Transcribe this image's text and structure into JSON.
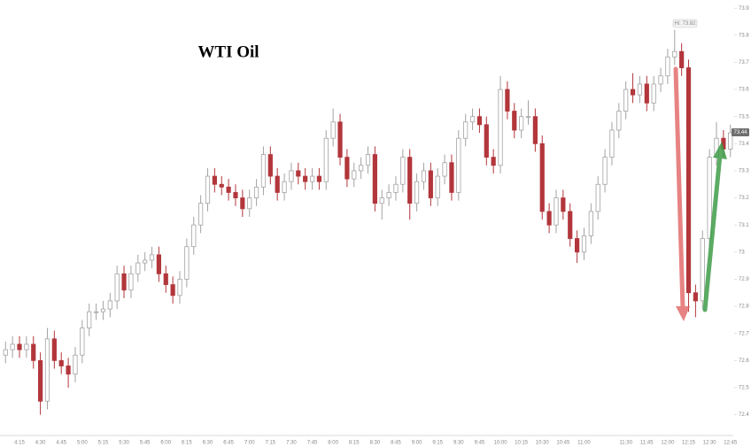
{
  "chart_data": {
    "type": "candlestick",
    "title": "WTI Oil",
    "categories": [
      null,
      null,
      "4:15",
      null,
      null,
      "4:30",
      null,
      null,
      "4:45",
      null,
      null,
      "5:00",
      null,
      null,
      "5:15",
      null,
      null,
      "5:30",
      null,
      null,
      "5:45",
      null,
      null,
      "6:00",
      null,
      null,
      "6:15",
      null,
      null,
      "6:30",
      null,
      null,
      "6:45",
      null,
      null,
      "7:00",
      null,
      null,
      "7:15",
      null,
      null,
      "7:30",
      null,
      null,
      "7:45",
      null,
      null,
      "8:00",
      null,
      null,
      "8:15",
      null,
      null,
      "8:30",
      null,
      null,
      "8:45",
      null,
      null,
      "9:00",
      null,
      null,
      "9:15",
      null,
      null,
      "9:30",
      null,
      null,
      "9:45",
      null,
      null,
      "10:00",
      null,
      null,
      "10:15",
      null,
      null,
      "10:30",
      null,
      null,
      "10:45",
      null,
      null,
      "11:00",
      null,
      null,
      null,
      null,
      null,
      "11:30",
      null,
      null,
      "11:45",
      null,
      null,
      "12:00",
      null,
      null,
      "12:15",
      null,
      null,
      "12:30",
      null,
      null,
      "12:45"
    ],
    "open": [
      72.62,
      72.64,
      72.66,
      72.64,
      72.66,
      72.6,
      72.45,
      72.68,
      72.6,
      72.58,
      72.55,
      72.62,
      72.72,
      72.78,
      72.78,
      72.79,
      72.82,
      72.92,
      72.86,
      72.92,
      72.96,
      72.97,
      72.99,
      72.92,
      72.88,
      72.84,
      72.9,
      73.02,
      73.1,
      73.18,
      73.28,
      73.25,
      73.24,
      73.22,
      73.2,
      73.16,
      73.2,
      73.24,
      73.36,
      73.28,
      73.22,
      73.26,
      73.3,
      73.28,
      73.26,
      73.28,
      73.26,
      73.42,
      73.48,
      73.35,
      73.27,
      73.3,
      73.32,
      73.36,
      73.18,
      73.2,
      73.22,
      73.25,
      73.35,
      73.18,
      73.26,
      73.3,
      73.2,
      73.28,
      73.33,
      73.22,
      73.42,
      73.48,
      73.5,
      73.47,
      73.35,
      73.32,
      73.6,
      73.52,
      73.45,
      73.5,
      73.5,
      73.4,
      73.15,
      73.1,
      73.2,
      73.15,
      73.05,
      73.0,
      73.06,
      73.15,
      73.25,
      73.35,
      73.45,
      73.52,
      73.6,
      73.58,
      73.62,
      73.55,
      73.62,
      73.65,
      73.72,
      73.74,
      73.68,
      72.85,
      72.82,
      73.05,
      73.35,
      73.42,
      73.38
    ],
    "high": [
      72.67,
      72.69,
      72.69,
      72.69,
      72.69,
      72.63,
      72.72,
      72.71,
      72.63,
      72.61,
      72.65,
      72.75,
      72.81,
      72.81,
      72.82,
      72.85,
      72.95,
      72.95,
      72.95,
      72.99,
      73.0,
      73.02,
      73.02,
      72.95,
      72.91,
      72.93,
      73.05,
      73.13,
      73.21,
      73.31,
      73.31,
      73.28,
      73.27,
      73.25,
      73.23,
      73.23,
      73.27,
      73.39,
      73.39,
      73.31,
      73.29,
      73.33,
      73.33,
      73.31,
      73.31,
      73.31,
      73.45,
      73.53,
      73.51,
      73.38,
      73.33,
      73.35,
      73.39,
      73.39,
      73.23,
      73.25,
      73.28,
      73.38,
      73.38,
      73.29,
      73.33,
      73.33,
      73.31,
      73.36,
      73.36,
      73.45,
      73.51,
      73.53,
      73.53,
      73.5,
      73.38,
      73.65,
      73.63,
      73.55,
      73.53,
      73.56,
      73.53,
      73.43,
      73.18,
      73.23,
      73.23,
      73.18,
      73.08,
      73.09,
      73.18,
      73.28,
      73.38,
      73.48,
      73.55,
      73.63,
      73.66,
      73.65,
      73.65,
      73.65,
      73.68,
      73.75,
      73.82,
      73.77,
      73.71,
      72.88,
      73.08,
      73.38,
      73.48,
      73.45,
      73.47
    ],
    "low": [
      72.59,
      72.61,
      72.61,
      72.61,
      72.57,
      72.4,
      72.42,
      72.57,
      72.55,
      72.5,
      72.52,
      72.59,
      72.69,
      72.75,
      72.75,
      72.76,
      72.79,
      72.83,
      72.83,
      72.89,
      72.93,
      72.94,
      72.89,
      72.85,
      72.81,
      72.81,
      72.87,
      72.99,
      73.07,
      73.15,
      73.22,
      73.21,
      73.19,
      73.17,
      73.13,
      73.13,
      73.17,
      73.21,
      73.25,
      73.19,
      73.19,
      73.23,
      73.25,
      73.23,
      73.23,
      73.23,
      73.23,
      73.39,
      73.32,
      73.24,
      73.24,
      73.27,
      73.29,
      73.15,
      73.12,
      73.17,
      73.19,
      73.22,
      73.12,
      73.15,
      73.23,
      73.17,
      73.17,
      73.25,
      73.19,
      73.19,
      73.39,
      73.45,
      73.44,
      73.32,
      73.29,
      73.29,
      73.49,
      73.42,
      73.42,
      73.47,
      73.37,
      73.12,
      73.07,
      73.07,
      73.12,
      73.02,
      72.96,
      72.97,
      73.03,
      73.12,
      73.22,
      73.32,
      73.42,
      73.49,
      73.55,
      73.55,
      73.52,
      73.52,
      73.59,
      73.62,
      73.69,
      73.65,
      72.78,
      72.76,
      72.79,
      73.02,
      73.32,
      73.35,
      73.35
    ],
    "close": [
      72.64,
      72.66,
      72.64,
      72.66,
      72.6,
      72.45,
      72.68,
      72.6,
      72.58,
      72.55,
      72.62,
      72.72,
      72.78,
      72.78,
      72.79,
      72.82,
      72.92,
      72.86,
      72.92,
      72.96,
      72.97,
      72.99,
      72.92,
      72.88,
      72.84,
      72.9,
      73.02,
      73.1,
      73.18,
      73.28,
      73.25,
      73.24,
      73.22,
      73.2,
      73.16,
      73.2,
      73.24,
      73.36,
      73.28,
      73.22,
      73.26,
      73.3,
      73.28,
      73.26,
      73.28,
      73.26,
      73.42,
      73.48,
      73.35,
      73.27,
      73.3,
      73.32,
      73.36,
      73.18,
      73.2,
      73.22,
      73.25,
      73.35,
      73.18,
      73.26,
      73.3,
      73.2,
      73.28,
      73.33,
      73.22,
      73.42,
      73.48,
      73.5,
      73.47,
      73.35,
      73.32,
      73.6,
      73.52,
      73.45,
      73.5,
      73.5,
      73.4,
      73.15,
      73.1,
      73.2,
      73.15,
      73.05,
      73.0,
      73.06,
      73.15,
      73.25,
      73.35,
      73.45,
      73.52,
      73.6,
      73.58,
      73.62,
      73.55,
      73.62,
      73.65,
      73.72,
      73.74,
      73.68,
      72.85,
      72.82,
      73.05,
      73.35,
      73.42,
      73.38,
      73.44
    ],
    "up_color": "#a3a3a3",
    "down_color": "#b2363b",
    "ylim": [
      72.33,
      73.93
    ],
    "yticks": [
      72.4,
      72.5,
      72.6,
      72.7,
      72.8,
      72.9,
      73,
      73.1,
      73.2,
      73.3,
      73.4,
      73.5,
      73.6,
      73.7,
      73.8,
      73.9
    ],
    "grid": false,
    "annotations": {
      "high_label": "Hi: 73.82",
      "last_price": "73.44"
    }
  }
}
